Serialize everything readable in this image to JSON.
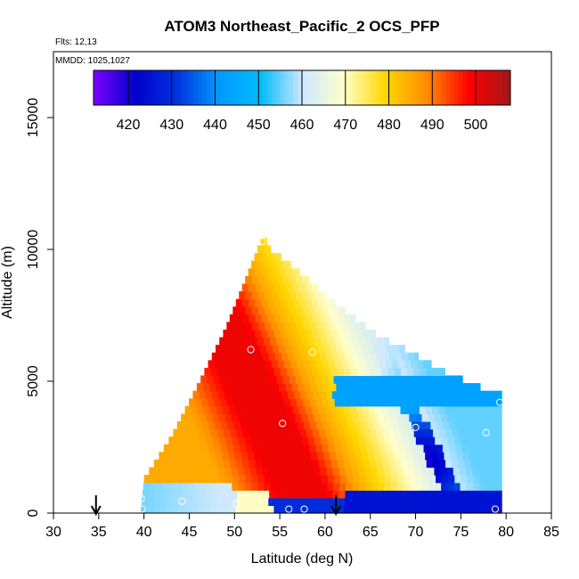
{
  "chart_data": {
    "type": "heatmap",
    "title": "ATOM3 Northeast_Pacific_2 OCS_PFP",
    "flights_note": "Flts: 12,13",
    "dates_note": "MMDD: 1025,1027",
    "xlabel": "Latitude (deg N)",
    "ylabel": "Altitude (m)",
    "xlim": [
      30,
      85
    ],
    "ylim": [
      0,
      17500
    ],
    "x_ticks": [
      30,
      35,
      40,
      45,
      50,
      55,
      60,
      65,
      70,
      75,
      80,
      85
    ],
    "y_ticks": [
      0,
      5000,
      10000,
      15000
    ],
    "colorbar": {
      "range": [
        412,
        508
      ],
      "ticks": [
        420,
        430,
        440,
        450,
        460,
        470,
        480,
        490,
        500
      ],
      "colors": [
        "#7f00ff",
        "#0000cc",
        "#0033dd",
        "#0099ff",
        "#00bbff",
        "#cce8ff",
        "#ffffcc",
        "#ffd700",
        "#ff8c00",
        "#ff0000",
        "#a01818"
      ]
    },
    "arrows_at_latitude": [
      34.7,
      61.2
    ],
    "grid_lat_step": 0.7,
    "grid_alt_step": 290,
    "envelope": {
      "left_edge": [
        [
          39.6,
          0
        ],
        [
          40,
          1300
        ],
        [
          43,
          2900
        ],
        [
          46,
          4900
        ],
        [
          49,
          7000
        ],
        [
          51,
          8700
        ],
        [
          53,
          10400
        ]
      ],
      "right_edge": [
        [
          53.4,
          10400
        ],
        [
          54,
          10000
        ],
        [
          56,
          9500
        ],
        [
          58,
          8900
        ],
        [
          61,
          8000
        ],
        [
          66,
          6700
        ],
        [
          69,
          6200
        ],
        [
          73,
          5400
        ],
        [
          77,
          4800
        ],
        [
          79.5,
          4500
        ],
        [
          79.5,
          0
        ]
      ]
    },
    "samples": [
      {
        "lat": 53.1,
        "alt": 10300
      },
      {
        "lat": 51.8,
        "alt": 6200
      },
      {
        "lat": 58.6,
        "alt": 6100
      },
      {
        "lat": 55.3,
        "alt": 3400
      },
      {
        "lat": 70.0,
        "alt": 3250
      },
      {
        "lat": 79.3,
        "alt": 4200
      },
      {
        "lat": 77.8,
        "alt": 3050
      },
      {
        "lat": 39.6,
        "alt": 1300
      },
      {
        "lat": 39.7,
        "alt": 550
      },
      {
        "lat": 39.8,
        "alt": 150
      },
      {
        "lat": 44.2,
        "alt": 450
      },
      {
        "lat": 50.2,
        "alt": 350
      },
      {
        "lat": 56.0,
        "alt": 150
      },
      {
        "lat": 57.7,
        "alt": 150
      },
      {
        "lat": 78.8,
        "alt": 150
      }
    ]
  }
}
